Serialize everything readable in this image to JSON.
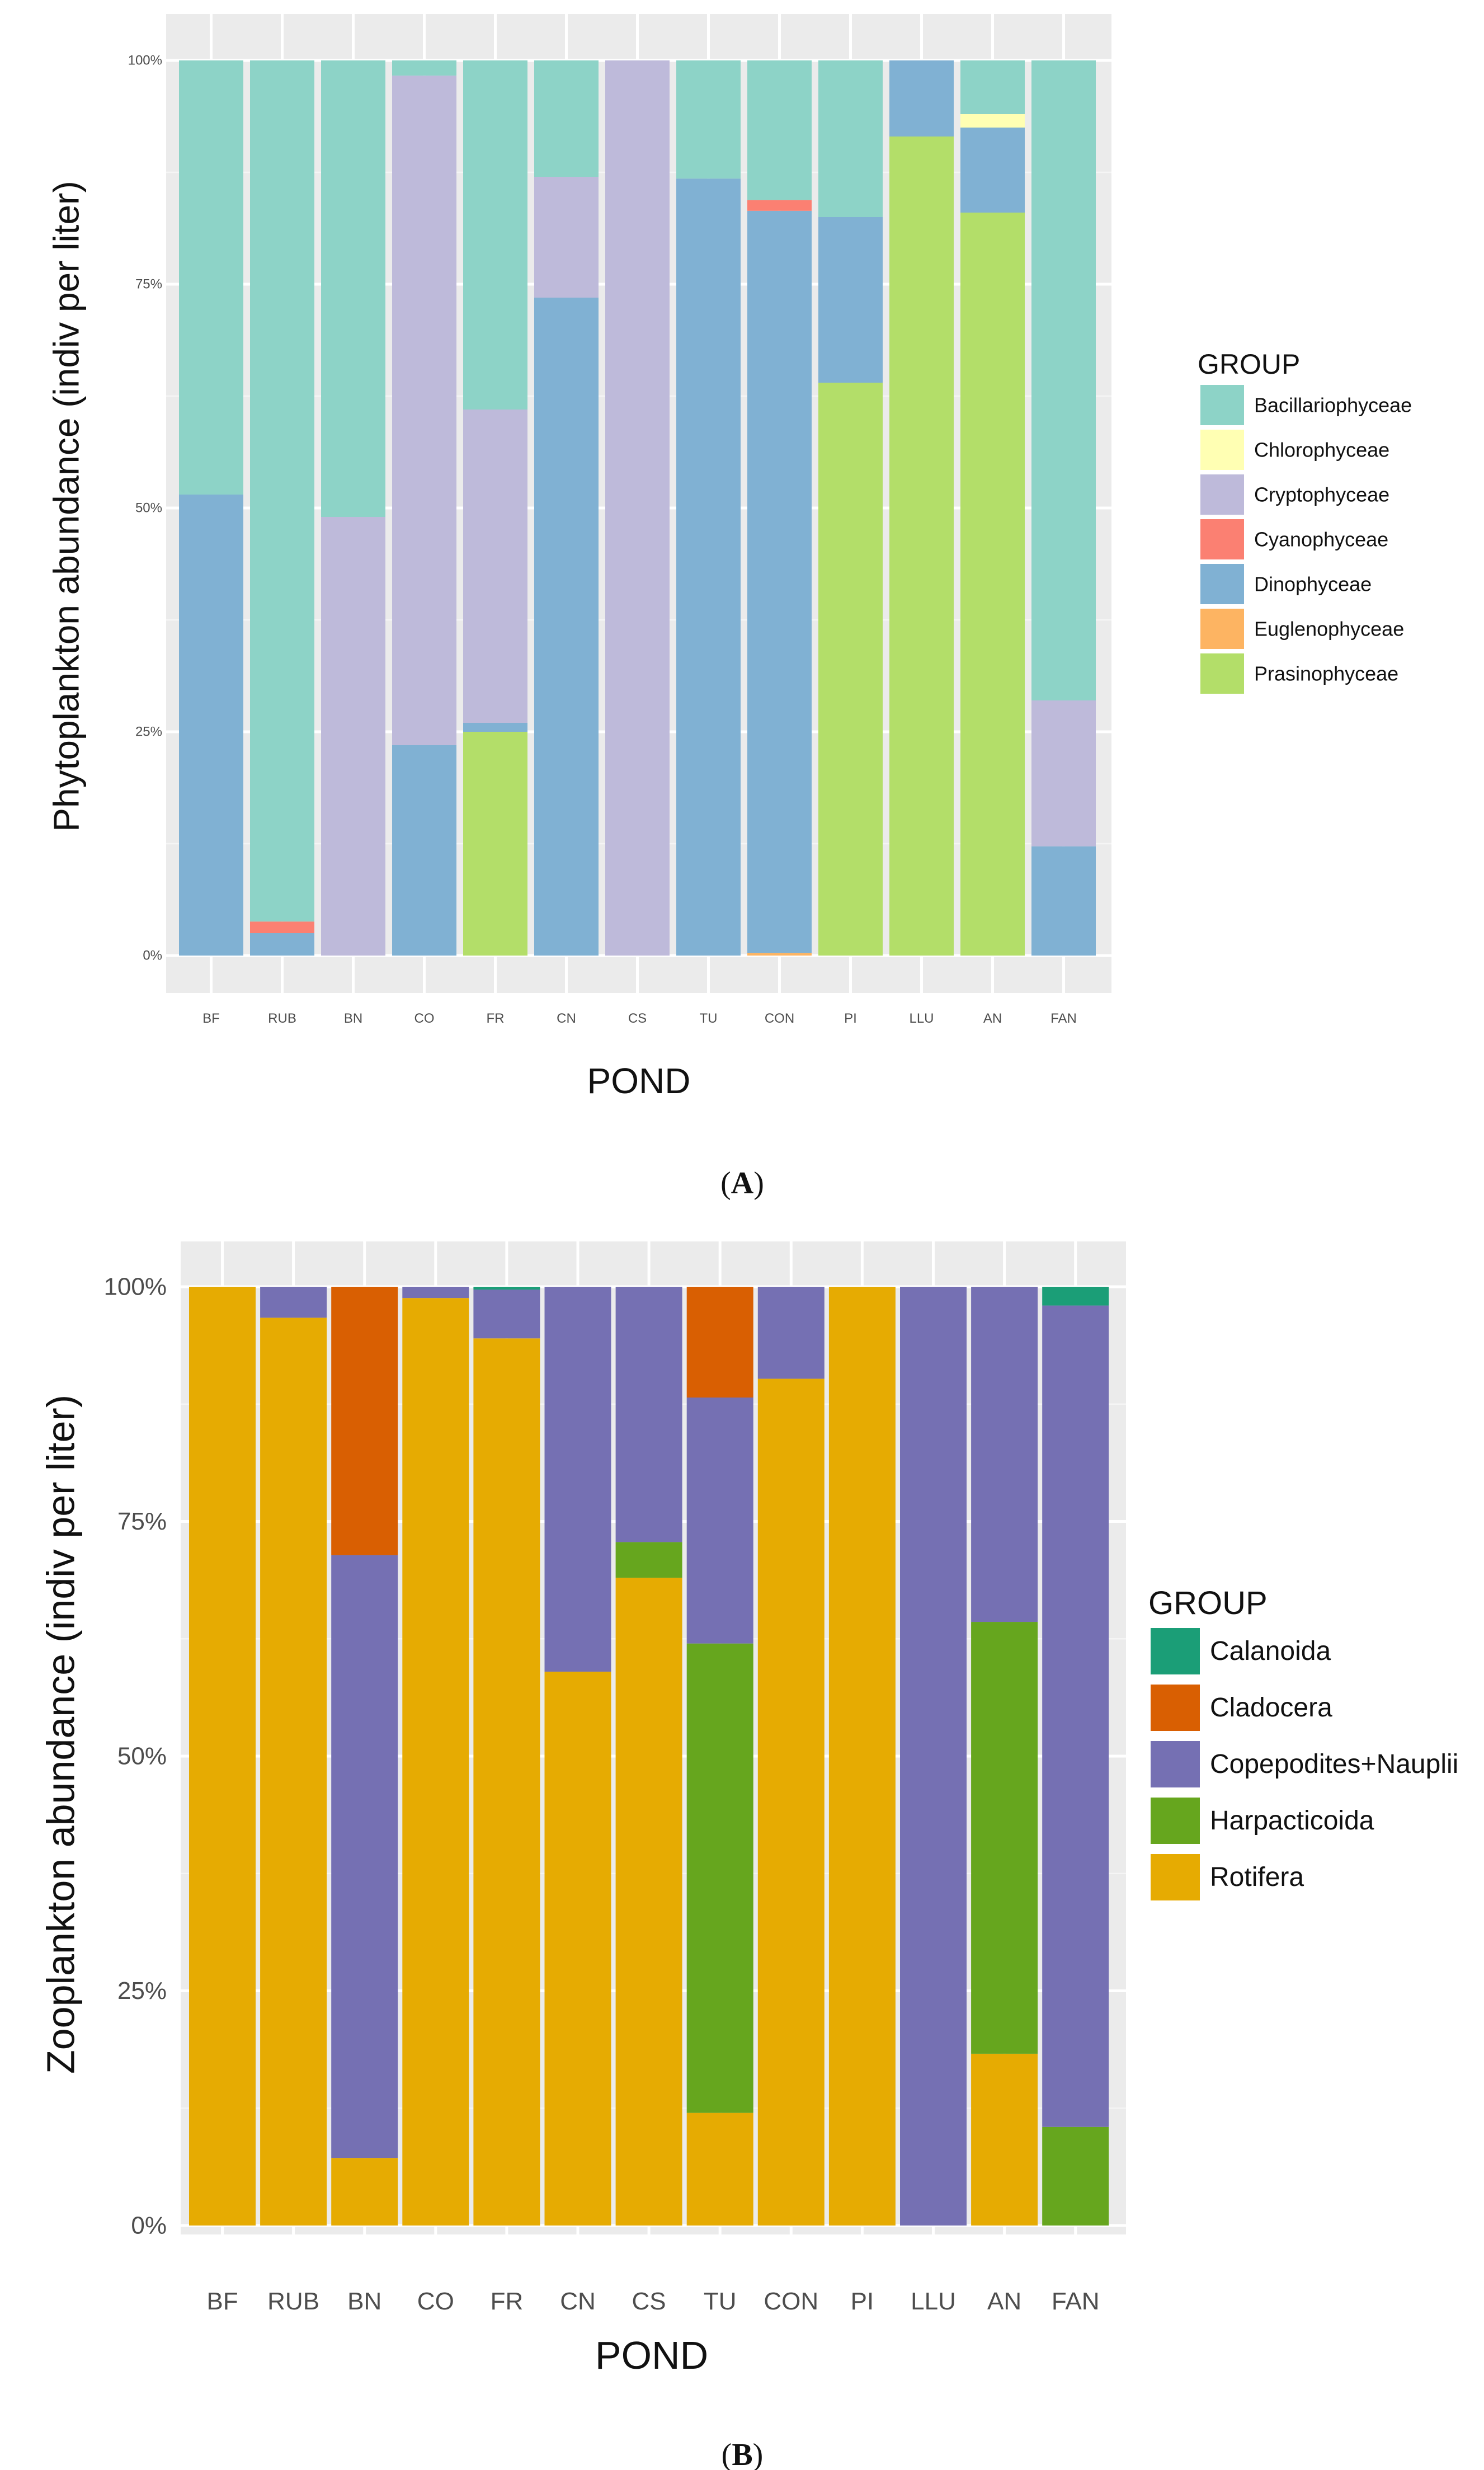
{
  "chart_data": [
    {
      "type": "bar",
      "stacked": true,
      "percent": true,
      "panel_label": "A",
      "xlabel": "POND",
      "ylabel": "Phytoplankton abundance (indiv per liter)",
      "ylim": [
        0,
        1
      ],
      "yticks": [
        "0%",
        "25%",
        "50%",
        "75%",
        "100%"
      ],
      "categories": [
        "BF",
        "RUB",
        "BN",
        "CO",
        "FR",
        "CN",
        "CS",
        "TU",
        "CON",
        "PI",
        "LLU",
        "AN",
        "FAN"
      ],
      "legend": {
        "title": "GROUP",
        "position": "right"
      },
      "series": [
        {
          "name": "Prasinophyceae",
          "color": "#b3de69",
          "values": [
            0,
            0,
            0,
            0,
            0.25,
            0,
            0,
            0,
            0,
            0.64,
            0.915,
            0.83,
            0
          ]
        },
        {
          "name": "Euglenophyceae",
          "color": "#fdb462",
          "values": [
            0,
            0,
            0,
            0,
            0,
            0,
            0,
            0,
            0.003,
            0,
            0,
            0,
            0
          ]
        },
        {
          "name": "Dinophyceae",
          "color": "#80b1d3",
          "values": [
            0.515,
            0.025,
            0,
            0.235,
            0.01,
            0.735,
            0,
            0.868,
            0.829,
            0.185,
            0.085,
            0.095,
            0.122
          ]
        },
        {
          "name": "Cyanophyceae",
          "color": "#fb8072",
          "values": [
            0,
            0.013,
            0,
            0,
            0,
            0,
            0,
            0,
            0.012,
            0,
            0,
            0,
            0
          ]
        },
        {
          "name": "Cryptophyceae",
          "color": "#bebada",
          "values": [
            0,
            0,
            0.49,
            0.748,
            0.35,
            0.135,
            1.0,
            0,
            0,
            0,
            0,
            0,
            0.163
          ]
        },
        {
          "name": "Chlorophyceae",
          "color": "#ffffb3",
          "values": [
            0,
            0,
            0,
            0,
            0,
            0,
            0,
            0,
            0,
            0,
            0,
            0.015,
            0
          ]
        },
        {
          "name": "Bacillariophyceae",
          "color": "#8dd3c7",
          "values": [
            0.485,
            0.962,
            0.51,
            0.017,
            0.39,
            0.13,
            0,
            0.132,
            0.156,
            0.175,
            0,
            0.06,
            0.715
          ]
        }
      ],
      "legend_order": [
        "Bacillariophyceae",
        "Chlorophyceae",
        "Cryptophyceae",
        "Cyanophyceae",
        "Dinophyceae",
        "Euglenophyceae",
        "Prasinophyceae"
      ]
    },
    {
      "type": "bar",
      "stacked": true,
      "percent": true,
      "panel_label": "B",
      "xlabel": "POND",
      "ylabel": "Zooplankton abundance (indiv per liter)",
      "ylim": [
        0,
        1
      ],
      "yticks": [
        "0%",
        "25%",
        "50%",
        "75%",
        "100%"
      ],
      "categories": [
        "BF",
        "RUB",
        "BN",
        "CO",
        "FR",
        "CN",
        "CS",
        "TU",
        "CON",
        "PI",
        "LLU",
        "AN",
        "FAN"
      ],
      "legend": {
        "title": "GROUP",
        "position": "right"
      },
      "series": [
        {
          "name": "Rotifera",
          "color": "#e6ab02",
          "values": [
            1.0,
            0.967,
            0.072,
            0.988,
            0.945,
            0.59,
            0.69,
            0.12,
            0.902,
            1.0,
            0,
            0.183,
            0
          ]
        },
        {
          "name": "Harpacticoida",
          "color": "#66a61e",
          "values": [
            0,
            0,
            0,
            0,
            0,
            0,
            0.038,
            0.5,
            0,
            0,
            0,
            0.46,
            0.105
          ]
        },
        {
          "name": "Copepodites+Nauplii",
          "color": "#7570b3",
          "values": [
            0,
            0.033,
            0.642,
            0.012,
            0.052,
            0.41,
            0.272,
            0.262,
            0.098,
            0,
            1.0,
            0.357,
            0.875
          ]
        },
        {
          "name": "Cladocera",
          "color": "#d95f02",
          "values": [
            0,
            0,
            0.286,
            0,
            0,
            0,
            0,
            0.118,
            0,
            0,
            0,
            0,
            0
          ]
        },
        {
          "name": "Calanoida",
          "color": "#1b9e77",
          "values": [
            0,
            0,
            0,
            0,
            0.003,
            0,
            0,
            0,
            0,
            0,
            0,
            0,
            0.02
          ]
        }
      ],
      "legend_order": [
        "Calanoida",
        "Cladocera",
        "Copepodites+Nauplii",
        "Harpacticoida",
        "Rotifera"
      ]
    }
  ]
}
